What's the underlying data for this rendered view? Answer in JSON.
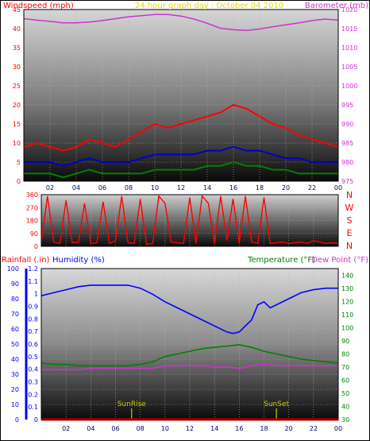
{
  "title": "24 hour graph day : October 04 2010",
  "colors": {
    "wind": "#ff0000",
    "gust": "#ff0000",
    "wind_avg": "#0000cc",
    "wind_low": "#008000",
    "barometer": "#cc33cc",
    "direction": "#ff0000",
    "humidity": "#0000ff",
    "temperature": "#008000",
    "dewpoint": "#cc33cc",
    "rain": "#ff0000",
    "sun_markers": "#cccc00",
    "grid": "#b4b4b4",
    "frame": "#000000"
  },
  "chart_data": [
    {
      "type": "line",
      "panel": "wind-barometer",
      "label_left": "Windspeed (mph)",
      "label_right": "Barometer (mb)",
      "x_ticks": [
        "02",
        "04",
        "06",
        "08",
        "10",
        "12",
        "14",
        "16",
        "18",
        "20",
        "22",
        "00"
      ],
      "x_range": [
        0,
        24
      ],
      "y_left_ticks": [
        "0",
        "5",
        "10",
        "15",
        "20",
        "25",
        "30",
        "35",
        "40",
        "45"
      ],
      "y_left_range": [
        0,
        45
      ],
      "y_right_ticks": [
        "975",
        "980",
        "985",
        "990",
        "995",
        "1000",
        "1005",
        "1010",
        "1015",
        "1020"
      ],
      "y_right_range": [
        975,
        1020
      ],
      "grid": true,
      "series": [
        {
          "name": "Barometer (mb)",
          "axis": "right",
          "x": [
            0,
            1,
            2,
            3,
            4,
            5,
            6,
            7,
            8,
            9,
            10,
            11,
            12,
            13,
            14,
            15,
            16,
            17,
            18,
            19,
            20,
            21,
            22,
            23,
            24
          ],
          "values": [
            1017.6,
            1017.2,
            1016.9,
            1016.5,
            1016.5,
            1016.7,
            1017.1,
            1017.6,
            1018.1,
            1018.4,
            1018.7,
            1018.7,
            1018.3,
            1017.5,
            1016.4,
            1015.1,
            1014.7,
            1014.5,
            1014.9,
            1015.5,
            1016.0,
            1016.5,
            1017.1,
            1017.5,
            1017.2
          ]
        },
        {
          "name": "Wind gust",
          "axis": "left",
          "x": [
            0,
            1,
            2,
            3,
            4,
            5,
            6,
            7,
            8,
            9,
            10,
            11,
            12,
            13,
            14,
            15,
            16,
            17,
            18,
            19,
            20,
            21,
            22,
            23,
            24
          ],
          "values": [
            9,
            10,
            9,
            8,
            9,
            11,
            10,
            9,
            11,
            13,
            15,
            14,
            15,
            16,
            17,
            18,
            20,
            19,
            17,
            15,
            14,
            12,
            11,
            10,
            9
          ]
        },
        {
          "name": "Wind average",
          "axis": "left",
          "x": [
            0,
            1,
            2,
            3,
            4,
            5,
            6,
            7,
            8,
            9,
            10,
            11,
            12,
            13,
            14,
            15,
            16,
            17,
            18,
            19,
            20,
            21,
            22,
            23,
            24
          ],
          "values": [
            5,
            5,
            5,
            4,
            5,
            6,
            5,
            5,
            5,
            6,
            7,
            7,
            7,
            7,
            8,
            8,
            9,
            8,
            8,
            7,
            6,
            6,
            5,
            5,
            5
          ]
        },
        {
          "name": "Wind speed",
          "axis": "left",
          "x": [
            0,
            1,
            2,
            3,
            4,
            5,
            6,
            7,
            8,
            9,
            10,
            11,
            12,
            13,
            14,
            15,
            16,
            17,
            18,
            19,
            20,
            21,
            22,
            23,
            24
          ],
          "values": [
            2,
            2,
            2,
            1,
            2,
            3,
            2,
            2,
            2,
            2,
            3,
            3,
            3,
            3,
            4,
            4,
            5,
            4,
            4,
            3,
            3,
            2,
            2,
            2,
            2
          ]
        }
      ]
    },
    {
      "type": "line",
      "panel": "wind-direction",
      "x_range": [
        0,
        24
      ],
      "y_ticks": [
        "0",
        "90",
        "180",
        "270",
        "360"
      ],
      "y_range": [
        0,
        360
      ],
      "direction_labels": [
        "N",
        "W",
        "S",
        "E",
        "N"
      ],
      "grid": true,
      "series": [
        {
          "name": "Wind direction",
          "x": [
            0,
            0.5,
            1,
            1.5,
            2,
            2.5,
            3,
            3.5,
            4,
            4.5,
            5,
            5.5,
            6,
            6.5,
            7,
            7.5,
            8,
            8.5,
            9,
            9.5,
            10,
            10.5,
            11,
            11.5,
            12,
            12.5,
            13,
            13.5,
            14,
            14.5,
            15,
            15.5,
            16,
            16.5,
            17,
            17.5,
            18,
            18.5,
            19,
            19.5,
            20,
            20.5,
            21,
            21.5,
            22,
            22.5,
            23,
            23.5,
            24
          ],
          "values": [
            30,
            350,
            30,
            20,
            320,
            25,
            30,
            300,
            20,
            25,
            310,
            20,
            40,
            350,
            25,
            20,
            330,
            15,
            20,
            350,
            300,
            30,
            25,
            20,
            340,
            20,
            350,
            300,
            20,
            350,
            40,
            330,
            20,
            350,
            30,
            20,
            340,
            20,
            25,
            30,
            20,
            25,
            30,
            20,
            40,
            30,
            20,
            25,
            20
          ]
        }
      ]
    },
    {
      "type": "line",
      "panel": "rain-humidity-temperature",
      "label_rain": "Rainfall (.in)",
      "label_humidity": "Humidity (%)",
      "label_temperature": "Temperature (°F)",
      "label_dewpoint": "Dew Point (°F)",
      "x_ticks": [
        "00",
        "02",
        "04",
        "06",
        "08",
        "10",
        "12",
        "14",
        "16",
        "18",
        "20",
        "22",
        "00"
      ],
      "x_range": [
        0,
        24
      ],
      "y_humidity_ticks": [
        "0",
        "10",
        "20",
        "30",
        "40",
        "50",
        "60",
        "70",
        "80",
        "90",
        "100"
      ],
      "y_humidity_range": [
        0,
        100
      ],
      "y_rain_ticks": [
        "0",
        "0.1",
        "0.2",
        "0.3",
        "0.4",
        "0.5",
        "0.6",
        "0.7",
        "0.8",
        "0.9",
        "1",
        "1.1",
        "1.2"
      ],
      "y_rain_range": [
        0,
        1.2
      ],
      "y_temp_ticks": [
        "30",
        "40",
        "50",
        "60",
        "70",
        "80",
        "90",
        "100",
        "110",
        "120",
        "130",
        "140"
      ],
      "y_temp_range": [
        30,
        145
      ],
      "grid": true,
      "markers": [
        {
          "label": "SunRise",
          "x": 7.3
        },
        {
          "label": "SunSet",
          "x": 19.0
        }
      ],
      "series": [
        {
          "name": "Humidity (%)",
          "axis": "humidity",
          "x": [
            0,
            1,
            2,
            3,
            4,
            5,
            6,
            7,
            8,
            9,
            10,
            11,
            12,
            13,
            14,
            15,
            15.5,
            16,
            16.5,
            17,
            17.5,
            18,
            18.5,
            19,
            20,
            21,
            22,
            23,
            24
          ],
          "values": [
            82,
            84,
            86,
            88,
            89,
            89,
            89,
            89,
            87,
            83,
            78,
            74,
            70,
            66,
            62,
            58,
            57,
            58,
            62,
            66,
            76,
            78,
            74,
            76,
            80,
            84,
            86,
            87,
            87
          ]
        },
        {
          "name": "Temperature (°F)",
          "axis": "temp",
          "x": [
            0,
            1,
            2,
            3,
            4,
            5,
            6,
            7,
            8,
            9,
            10,
            11,
            12,
            13,
            14,
            15,
            16,
            17,
            18,
            19,
            20,
            21,
            22,
            23,
            24
          ],
          "values": [
            73,
            72,
            72,
            71,
            71,
            71,
            71,
            71,
            72,
            74,
            78,
            80,
            82,
            84,
            85,
            86,
            87,
            85,
            82,
            80,
            78,
            76,
            75,
            74,
            73
          ]
        },
        {
          "name": "Dew Point (°F)",
          "axis": "temp",
          "x": [
            0,
            1,
            2,
            3,
            4,
            5,
            6,
            7,
            8,
            9,
            10,
            11,
            12,
            13,
            14,
            15,
            16,
            17,
            18,
            19,
            20,
            21,
            22,
            23,
            24
          ],
          "values": [
            68,
            68,
            68,
            68,
            69,
            69,
            69,
            69,
            69,
            69,
            71,
            71,
            71,
            71,
            70,
            70,
            69,
            71,
            72,
            71,
            71,
            71,
            71,
            71,
            71
          ]
        },
        {
          "name": "Rainfall (.in)",
          "axis": "rain",
          "x": [
            0,
            24
          ],
          "values": [
            0,
            0
          ]
        }
      ]
    }
  ]
}
